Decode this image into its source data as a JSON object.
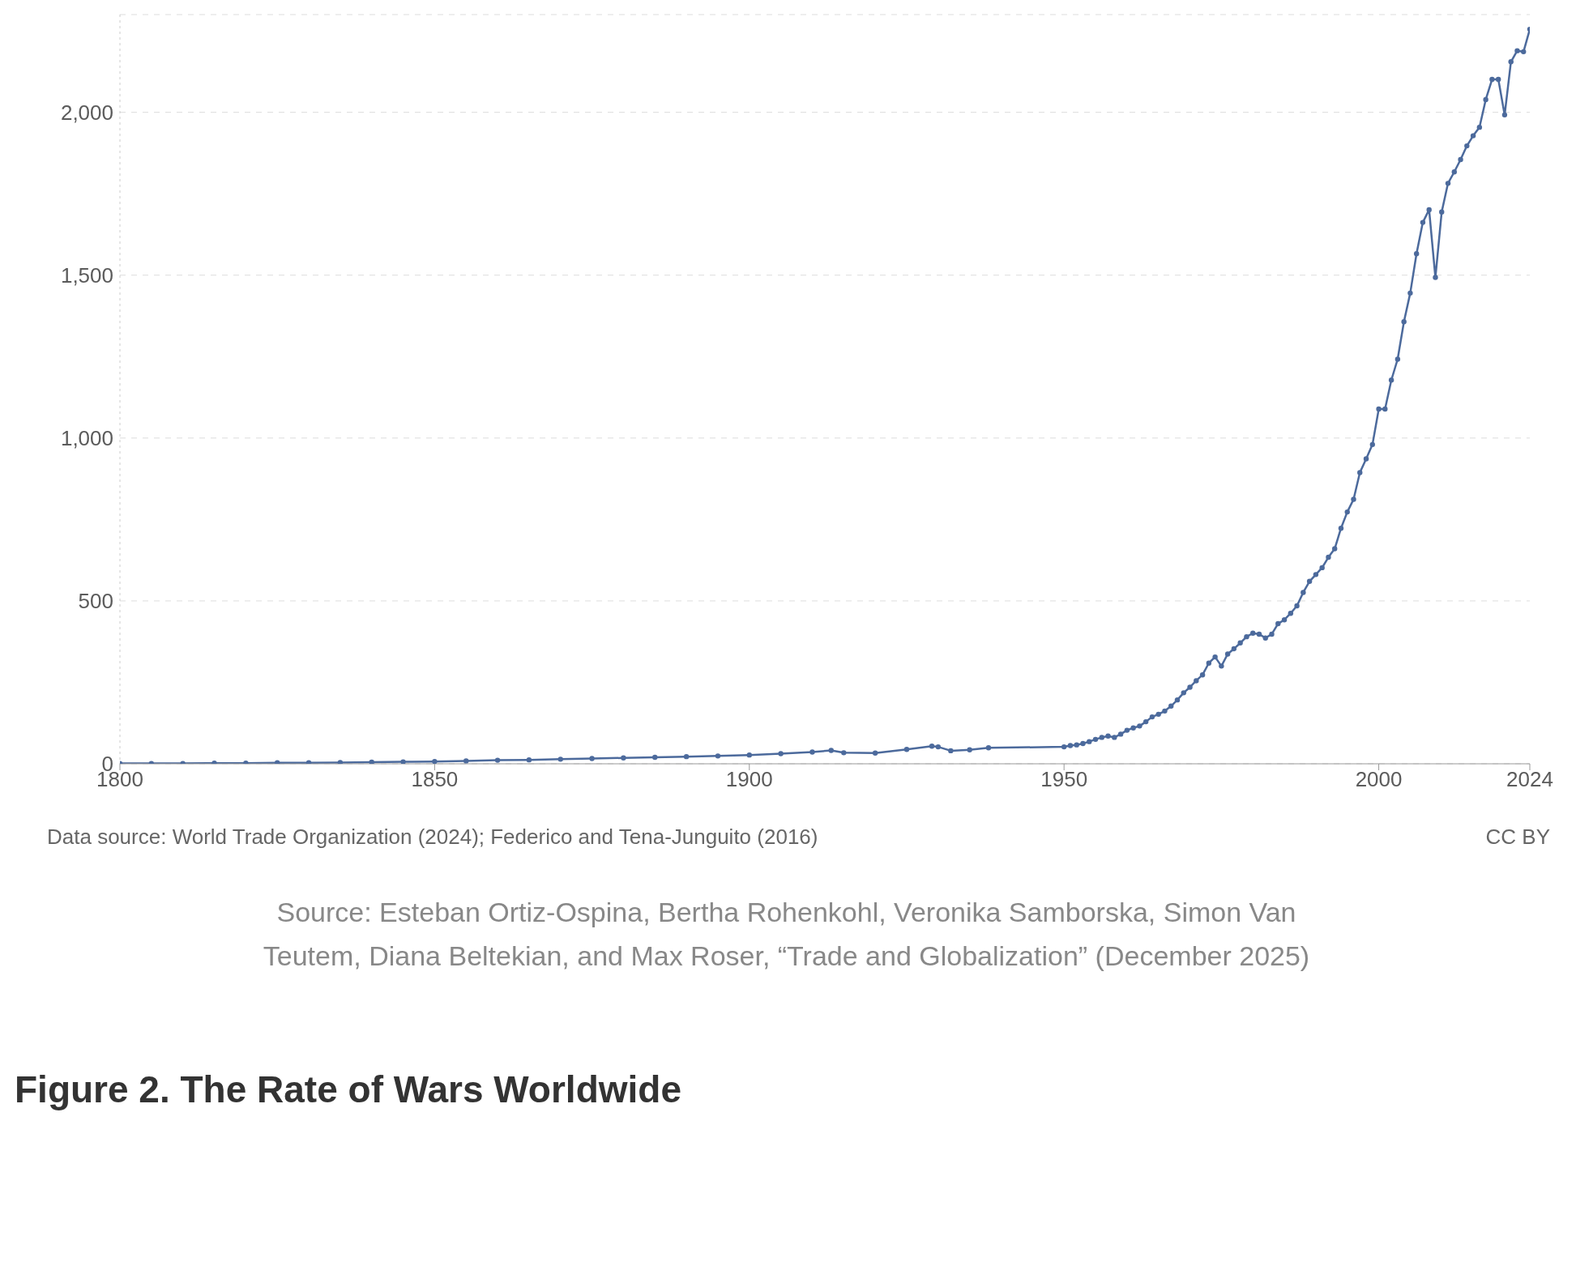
{
  "chart_data": {
    "type": "line",
    "x": [
      1800,
      1805,
      1810,
      1815,
      1820,
      1825,
      1830,
      1835,
      1840,
      1845,
      1850,
      1855,
      1860,
      1865,
      1870,
      1875,
      1880,
      1885,
      1890,
      1895,
      1900,
      1905,
      1910,
      1913,
      1915,
      1920,
      1925,
      1929,
      1930,
      1932,
      1935,
      1938,
      1950,
      1951,
      1952,
      1953,
      1954,
      1955,
      1956,
      1957,
      1958,
      1959,
      1960,
      1961,
      1962,
      1963,
      1964,
      1965,
      1966,
      1967,
      1968,
      1969,
      1970,
      1971,
      1972,
      1973,
      1974,
      1975,
      1976,
      1977,
      1978,
      1979,
      1980,
      1981,
      1982,
      1983,
      1984,
      1985,
      1986,
      1987,
      1988,
      1989,
      1990,
      1991,
      1992,
      1993,
      1994,
      1995,
      1996,
      1997,
      1998,
      1999,
      2000,
      2001,
      2002,
      2003,
      2004,
      2005,
      2006,
      2007,
      2008,
      2009,
      2010,
      2011,
      2012,
      2013,
      2014,
      2015,
      2016,
      2017,
      2018,
      2019,
      2020,
      2021,
      2022,
      2023,
      2024
    ],
    "series": [
      {
        "color": "#4c6a9c",
        "values": [
          1,
          1,
          1,
          2,
          2,
          3,
          3,
          4,
          5,
          6,
          7,
          9,
          11,
          12,
          14,
          16,
          18,
          20,
          22,
          24,
          27,
          31,
          36,
          41,
          34,
          33,
          44,
          54,
          52,
          40,
          43,
          49,
          52,
          56,
          58,
          62,
          68,
          75,
          81,
          85,
          81,
          91,
          103,
          110,
          116,
          129,
          144,
          152,
          162,
          177,
          196,
          218,
          235,
          255,
          273,
          309,
          328,
          300,
          337,
          353,
          371,
          390,
          401,
          398,
          386,
          398,
          430,
          442,
          462,
          485,
          526,
          560,
          581,
          602,
          634,
          660,
          723,
          773,
          812,
          894,
          936,
          980,
          1089,
          1089,
          1178,
          1242,
          1357,
          1445,
          1566,
          1662,
          1701,
          1493,
          1694,
          1782,
          1817,
          1855,
          1897,
          1928,
          1954,
          2039,
          2101,
          2101,
          1992,
          2155,
          2189,
          2186,
          2255
        ]
      }
    ],
    "xlim": [
      1800,
      2024
    ],
    "xticks": [
      1800,
      1850,
      1900,
      1950,
      2000,
      2024
    ],
    "ylim": [
      0,
      2300
    ],
    "yticks": [
      0,
      500,
      {
        "value": 1000,
        "label": "1,000"
      },
      {
        "value": 1500,
        "label": "1,500"
      },
      {
        "value": 2000,
        "label": "2,000"
      }
    ],
    "grid": "y",
    "marker": "circle",
    "line_style": "solid",
    "legend": false,
    "annotations": [
      "Data source: World Trade Organization (2024); Federico and Tena-Junguito (2016)",
      "CC BY",
      "Source: Esteban Ortiz-Ospina, Bertha Rohenkohl, Veronika Samborska, Simon Van Teutem, Diana Beltekian, and Max Roser, “Trade and Globalization” (December 2025)",
      "Figure 2. The Rate of Wars Worldwide"
    ]
  }
}
